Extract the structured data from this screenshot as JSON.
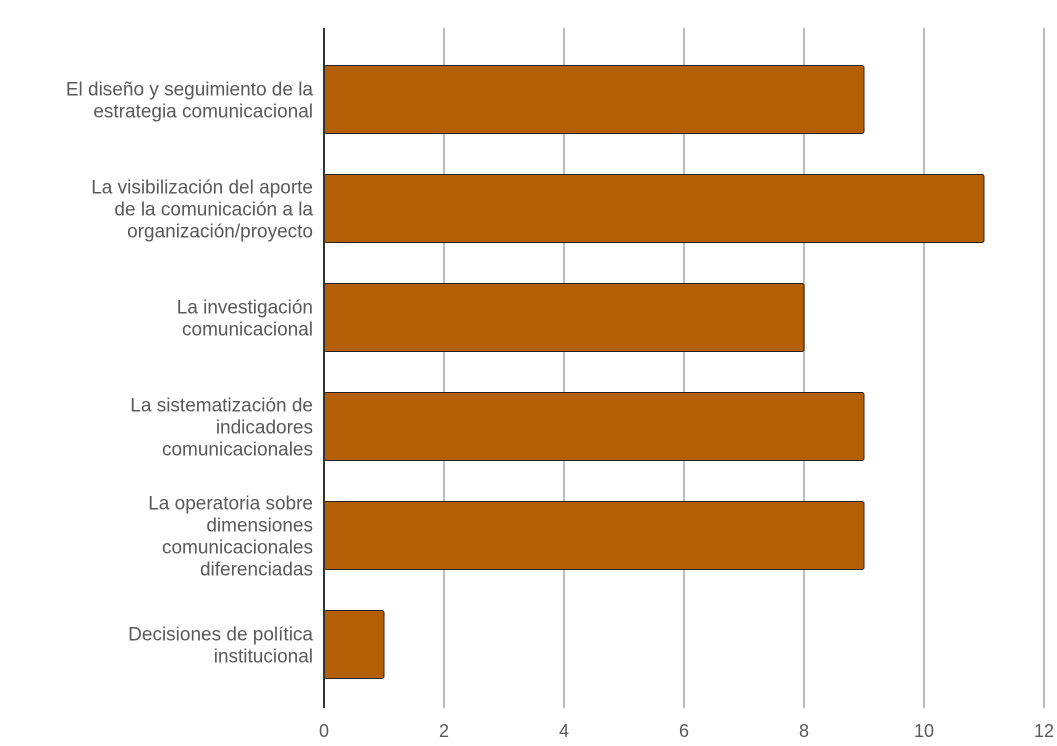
{
  "chart_data": {
    "type": "bar",
    "orientation": "horizontal",
    "categories": [
      [
        "El diseño y seguimiento de la",
        "estrategia comunicacional"
      ],
      [
        "La visibilización del aporte",
        "de la comunicación a la",
        "organización/proyecto"
      ],
      [
        "La investigación",
        "comunicacional"
      ],
      [
        "La sistematización de",
        "indicadores",
        "comunicacionales"
      ],
      [
        "La operatoria sobre",
        "dimensiones",
        "comunicacionales",
        "diferenciadas"
      ],
      [
        "Decisiones de política",
        "institucional"
      ]
    ],
    "values": [
      9,
      11,
      8,
      9,
      9,
      1
    ],
    "xlim": [
      0,
      12
    ],
    "xticks": [
      "0",
      "2",
      "4",
      "6",
      "8",
      "10",
      "12"
    ],
    "title": "",
    "xlabel": "",
    "ylabel": "",
    "grid": "vertical",
    "legend": "none",
    "colors": {
      "bar": "#b45f06",
      "bar_edge": "#222222",
      "grid": "#bcbcbc",
      "axis": "#333333",
      "text": "#595959"
    }
  }
}
